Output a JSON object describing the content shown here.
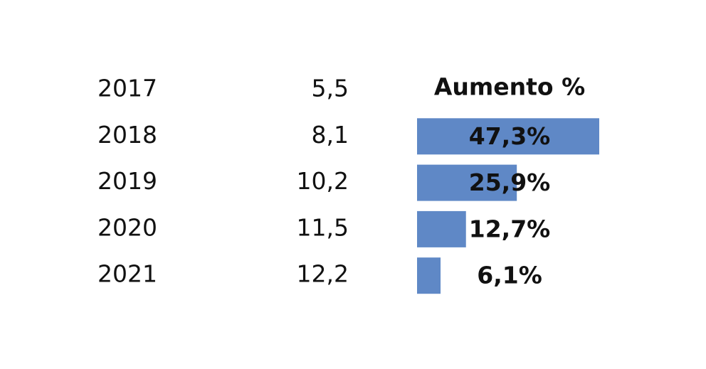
{
  "chart_data": {
    "type": "bar",
    "categories": [
      "2017",
      "2018",
      "2019",
      "2020",
      "2021"
    ],
    "values": [
      5.5,
      8.1,
      10.2,
      11.5,
      12.2
    ],
    "value_labels": [
      "5,5",
      "8,1",
      "10,2",
      "11,5",
      "12,2"
    ],
    "series": [
      {
        "name": "Aumento %",
        "color": "#5f88c6",
        "values": [
          null,
          47.3,
          25.9,
          12.7,
          6.1
        ],
        "value_labels": [
          null,
          "47,3%",
          "25,9%",
          "12,7%",
          "6,1%"
        ]
      }
    ],
    "xlim": [
      0,
      47.3
    ]
  }
}
